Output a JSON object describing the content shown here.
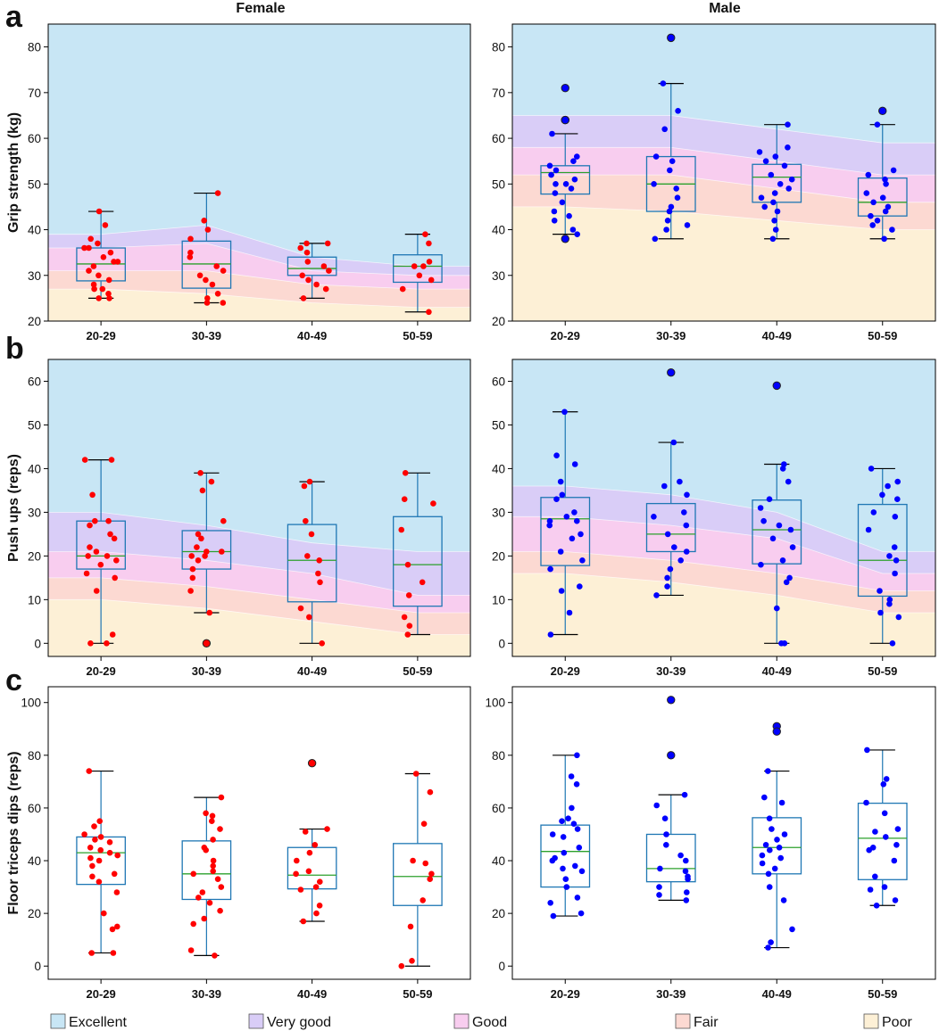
{
  "columns": [
    "Female",
    "Male"
  ],
  "legend": [
    {
      "label": "Excellent",
      "color": "#c8e6f5"
    },
    {
      "label": "Very good",
      "color": "#d9cdf7"
    },
    {
      "label": "Good",
      "color": "#f8cdef"
    },
    {
      "label": "Fair",
      "color": "#fcd9d2"
    },
    {
      "label": "Poor",
      "color": "#fdf0d6"
    }
  ],
  "colors": {
    "female": "#ff0000",
    "male": "#0000ff",
    "box": "#1f77b4",
    "median": "#2ca02c"
  },
  "chart_data": [
    {
      "panel": "a",
      "sex": "Female",
      "type": "box",
      "ylabel": "Grip strength (kg)",
      "categories": [
        "20-29",
        "30-39",
        "40-49",
        "50-59"
      ],
      "ylim": [
        20,
        85
      ],
      "yticks": [
        20,
        30,
        40,
        50,
        60,
        70,
        80
      ],
      "bands": {
        "x": [
          0,
          1,
          2,
          3
        ],
        "poor": [
          27,
          26,
          24,
          23
        ],
        "fair": [
          31,
          31,
          28,
          27
        ],
        "good": [
          36,
          37,
          31,
          30
        ],
        "very_good": [
          39,
          41,
          34,
          32
        ]
      },
      "boxes": [
        {
          "q1": 28.8,
          "median": 32.5,
          "q3": 36,
          "whisker_low": 25,
          "whisker_high": 44,
          "outliers": []
        },
        {
          "q1": 27.2,
          "median": 32.5,
          "q3": 37.5,
          "whisker_low": 24,
          "whisker_high": 48,
          "outliers": []
        },
        {
          "q1": 30,
          "median": 31.5,
          "q3": 34,
          "whisker_low": 25,
          "whisker_high": 37,
          "outliers": []
        },
        {
          "q1": 28.5,
          "median": 32,
          "q3": 34.5,
          "whisker_low": 22,
          "whisker_high": 39,
          "outliers": []
        }
      ],
      "points": [
        [
          44,
          41,
          38,
          37,
          36,
          36,
          35,
          34,
          33,
          33,
          32,
          31,
          30,
          29,
          28,
          27,
          27,
          26,
          25,
          25
        ],
        [
          48,
          42,
          40,
          38,
          35,
          34,
          32,
          31,
          30,
          29,
          28,
          26,
          25,
          24,
          24
        ],
        [
          37,
          37,
          36,
          35,
          33,
          32,
          31,
          30,
          29,
          28,
          27,
          25
        ],
        [
          39,
          37,
          33,
          32,
          32,
          30,
          29,
          27,
          22
        ]
      ]
    },
    {
      "panel": "a",
      "sex": "Male",
      "type": "box",
      "ylabel": "",
      "categories": [
        "20-29",
        "30-39",
        "40-49",
        "50-59"
      ],
      "ylim": [
        20,
        85
      ],
      "yticks": [
        20,
        30,
        40,
        50,
        60,
        70,
        80
      ],
      "bands": {
        "x": [
          0,
          1,
          2,
          3
        ],
        "poor": [
          45,
          44,
          42,
          40
        ],
        "fair": [
          52,
          52,
          49,
          46
        ],
        "good": [
          58,
          58,
          55,
          52
        ],
        "very_good": [
          65,
          65,
          62,
          59
        ]
      },
      "boxes": [
        {
          "q1": 47.8,
          "median": 52.5,
          "q3": 54,
          "whisker_low": 39,
          "whisker_high": 61,
          "outliers": [
            71,
            64,
            64,
            38
          ]
        },
        {
          "q1": 44,
          "median": 50,
          "q3": 56,
          "whisker_low": 38,
          "whisker_high": 72,
          "outliers": [
            82
          ]
        },
        {
          "q1": 46,
          "median": 51.5,
          "q3": 54.3,
          "whisker_low": 38,
          "whisker_high": 63,
          "outliers": []
        },
        {
          "q1": 43,
          "median": 46,
          "q3": 51.3,
          "whisker_low": 38,
          "whisker_high": 63,
          "outliers": [
            66
          ]
        }
      ],
      "points": [
        [
          61,
          56,
          55,
          54,
          53,
          52,
          51,
          50,
          50,
          49,
          48,
          46,
          44,
          43,
          42,
          40,
          39
        ],
        [
          72,
          66,
          62,
          56,
          55,
          53,
          50,
          49,
          47,
          45,
          44,
          42,
          41,
          40,
          38
        ],
        [
          63,
          58,
          57,
          56,
          55,
          54,
          52,
          51,
          50,
          49,
          48,
          47,
          46,
          45,
          44,
          42,
          40,
          38
        ],
        [
          63,
          53,
          52,
          51,
          50,
          48,
          47,
          46,
          45,
          44,
          43,
          42,
          41,
          40,
          38
        ]
      ]
    },
    {
      "panel": "b",
      "sex": "Female",
      "type": "box",
      "ylabel": "Push ups (reps)",
      "categories": [
        "20-29",
        "30-39",
        "40-49",
        "50-59"
      ],
      "ylim": [
        -3,
        65
      ],
      "yticks": [
        0,
        10,
        20,
        30,
        40,
        50,
        60
      ],
      "bands": {
        "x": [
          0,
          1,
          2,
          3
        ],
        "poor": [
          10,
          8,
          5,
          2
        ],
        "fair": [
          15,
          13,
          10,
          7
        ],
        "good": [
          21,
          19,
          16,
          11
        ],
        "very_good": [
          30,
          27,
          23,
          21
        ]
      },
      "boxes": [
        {
          "q1": 17,
          "median": 20,
          "q3": 28,
          "whisker_low": 0,
          "whisker_high": 42,
          "outliers": []
        },
        {
          "q1": 17,
          "median": 21,
          "q3": 25.8,
          "whisker_low": 7,
          "whisker_high": 39,
          "outliers": [
            0
          ]
        },
        {
          "q1": 9.5,
          "median": 19,
          "q3": 27.2,
          "whisker_low": 0,
          "whisker_high": 37,
          "outliers": []
        },
        {
          "q1": 8.5,
          "median": 18,
          "q3": 29,
          "whisker_low": 2,
          "whisker_high": 39,
          "outliers": []
        }
      ],
      "points": [
        [
          42,
          42,
          34,
          28,
          28,
          27,
          25,
          24,
          22,
          21,
          20,
          20,
          19,
          18,
          16,
          15,
          12,
          2,
          0,
          0
        ],
        [
          39,
          37,
          35,
          28,
          25,
          24,
          22,
          21,
          21,
          20,
          20,
          19,
          17,
          15,
          12,
          7
        ],
        [
          37,
          36,
          28,
          25,
          20,
          19,
          16,
          14,
          8,
          6,
          0
        ],
        [
          39,
          33,
          32,
          26,
          18,
          14,
          11,
          6,
          4,
          2
        ]
      ]
    },
    {
      "panel": "b",
      "sex": "Male",
      "type": "box",
      "ylabel": "",
      "categories": [
        "20-29",
        "30-39",
        "40-49",
        "50-59"
      ],
      "ylim": [
        -3,
        65
      ],
      "yticks": [
        0,
        10,
        20,
        30,
        40,
        50,
        60
      ],
      "bands": {
        "x": [
          0,
          1,
          2,
          3
        ],
        "poor": [
          16,
          14,
          11,
          7
        ],
        "fair": [
          21,
          19,
          16,
          12
        ],
        "good": [
          29,
          27,
          24,
          16
        ],
        "very_good": [
          36,
          34,
          30,
          21
        ]
      },
      "boxes": [
        {
          "q1": 17.8,
          "median": 28.5,
          "q3": 33.4,
          "whisker_low": 2,
          "whisker_high": 53,
          "outliers": []
        },
        {
          "q1": 21,
          "median": 25,
          "q3": 32,
          "whisker_low": 11,
          "whisker_high": 46,
          "outliers": [
            62
          ]
        },
        {
          "q1": 18.2,
          "median": 26,
          "q3": 32.8,
          "whisker_low": 0,
          "whisker_high": 41,
          "outliers": [
            59
          ]
        },
        {
          "q1": 10.8,
          "median": 19,
          "q3": 31.8,
          "whisker_low": 0,
          "whisker_high": 40,
          "outliers": []
        }
      ],
      "points": [
        [
          53,
          43,
          41,
          37,
          34,
          33,
          30,
          29,
          28,
          28,
          27,
          25,
          24,
          21,
          19,
          17,
          13,
          12,
          7,
          2
        ],
        [
          46,
          37,
          36,
          34,
          30,
          29,
          27,
          25,
          22,
          21,
          19,
          17,
          15,
          13,
          11
        ],
        [
          41,
          40,
          37,
          33,
          31,
          28,
          27,
          26,
          24,
          22,
          19,
          18,
          15,
          14,
          8,
          0,
          0
        ],
        [
          40,
          37,
          36,
          34,
          33,
          30,
          29,
          26,
          22,
          20,
          19,
          16,
          12,
          10,
          9,
          7,
          6,
          0
        ]
      ]
    },
    {
      "panel": "c",
      "sex": "Female",
      "type": "box",
      "ylabel": "Floor triceps dips (reps)",
      "categories": [
        "20-29",
        "30-39",
        "40-49",
        "50-59"
      ],
      "ylim": [
        -5,
        106
      ],
      "yticks": [
        0,
        20,
        40,
        60,
        80,
        100
      ],
      "boxes": [
        {
          "q1": 31,
          "median": 43,
          "q3": 49,
          "whisker_low": 5,
          "whisker_high": 74,
          "outliers": []
        },
        {
          "q1": 25.3,
          "median": 35,
          "q3": 47.5,
          "whisker_low": 4,
          "whisker_high": 64,
          "outliers": []
        },
        {
          "q1": 29.3,
          "median": 34.5,
          "q3": 45,
          "whisker_low": 17,
          "whisker_high": 52,
          "outliers": [
            77
          ]
        },
        {
          "q1": 23,
          "median": 34,
          "q3": 46.5,
          "whisker_low": 0,
          "whisker_high": 73,
          "outliers": []
        }
      ],
      "points": [
        [
          74,
          55,
          53,
          50,
          49,
          48,
          47,
          45,
          44,
          43,
          42,
          41,
          40,
          38,
          35,
          34,
          32,
          28,
          20,
          15,
          14,
          5,
          5
        ],
        [
          64,
          58,
          57,
          55,
          52,
          48,
          45,
          44,
          40,
          38,
          36,
          35,
          33,
          30,
          28,
          26,
          24,
          21,
          18,
          16,
          6,
          4
        ],
        [
          52,
          51,
          46,
          43,
          40,
          36,
          35,
          32,
          30,
          29,
          23,
          20,
          17
        ],
        [
          73,
          66,
          54,
          40,
          39,
          35,
          33,
          25,
          15,
          2,
          0
        ]
      ]
    },
    {
      "panel": "c",
      "sex": "Male",
      "type": "box",
      "ylabel": "",
      "categories": [
        "20-29",
        "30-39",
        "40-49",
        "50-59"
      ],
      "ylim": [
        -5,
        106
      ],
      "yticks": [
        0,
        20,
        40,
        60,
        80,
        100
      ],
      "boxes": [
        {
          "q1": 30,
          "median": 43.5,
          "q3": 53.5,
          "whisker_low": 19,
          "whisker_high": 80,
          "outliers": []
        },
        {
          "q1": 32,
          "median": 37,
          "q3": 50,
          "whisker_low": 25,
          "whisker_high": 65,
          "outliers": [
            101,
            80
          ]
        },
        {
          "q1": 35,
          "median": 45,
          "q3": 56.3,
          "whisker_low": 7,
          "whisker_high": 74,
          "outliers": [
            91,
            89
          ]
        },
        {
          "q1": 32.8,
          "median": 48.5,
          "q3": 61.8,
          "whisker_low": 23,
          "whisker_high": 82,
          "outliers": []
        }
      ],
      "points": [
        [
          80,
          72,
          69,
          60,
          56,
          55,
          54,
          52,
          50,
          49,
          45,
          43,
          41,
          40,
          38,
          37,
          36,
          33,
          30,
          26,
          24,
          20,
          19
        ],
        [
          65,
          61,
          56,
          50,
          46,
          42,
          40,
          37,
          36,
          34,
          33,
          30,
          28,
          27,
          25
        ],
        [
          74,
          64,
          62,
          56,
          52,
          50,
          48,
          46,
          45,
          44,
          42,
          41,
          39,
          37,
          35,
          30,
          25,
          14,
          9,
          7
        ],
        [
          82,
          71,
          69,
          62,
          58,
          52,
          51,
          49,
          46,
          45,
          44,
          40,
          34,
          30,
          29,
          25,
          23
        ]
      ]
    }
  ]
}
